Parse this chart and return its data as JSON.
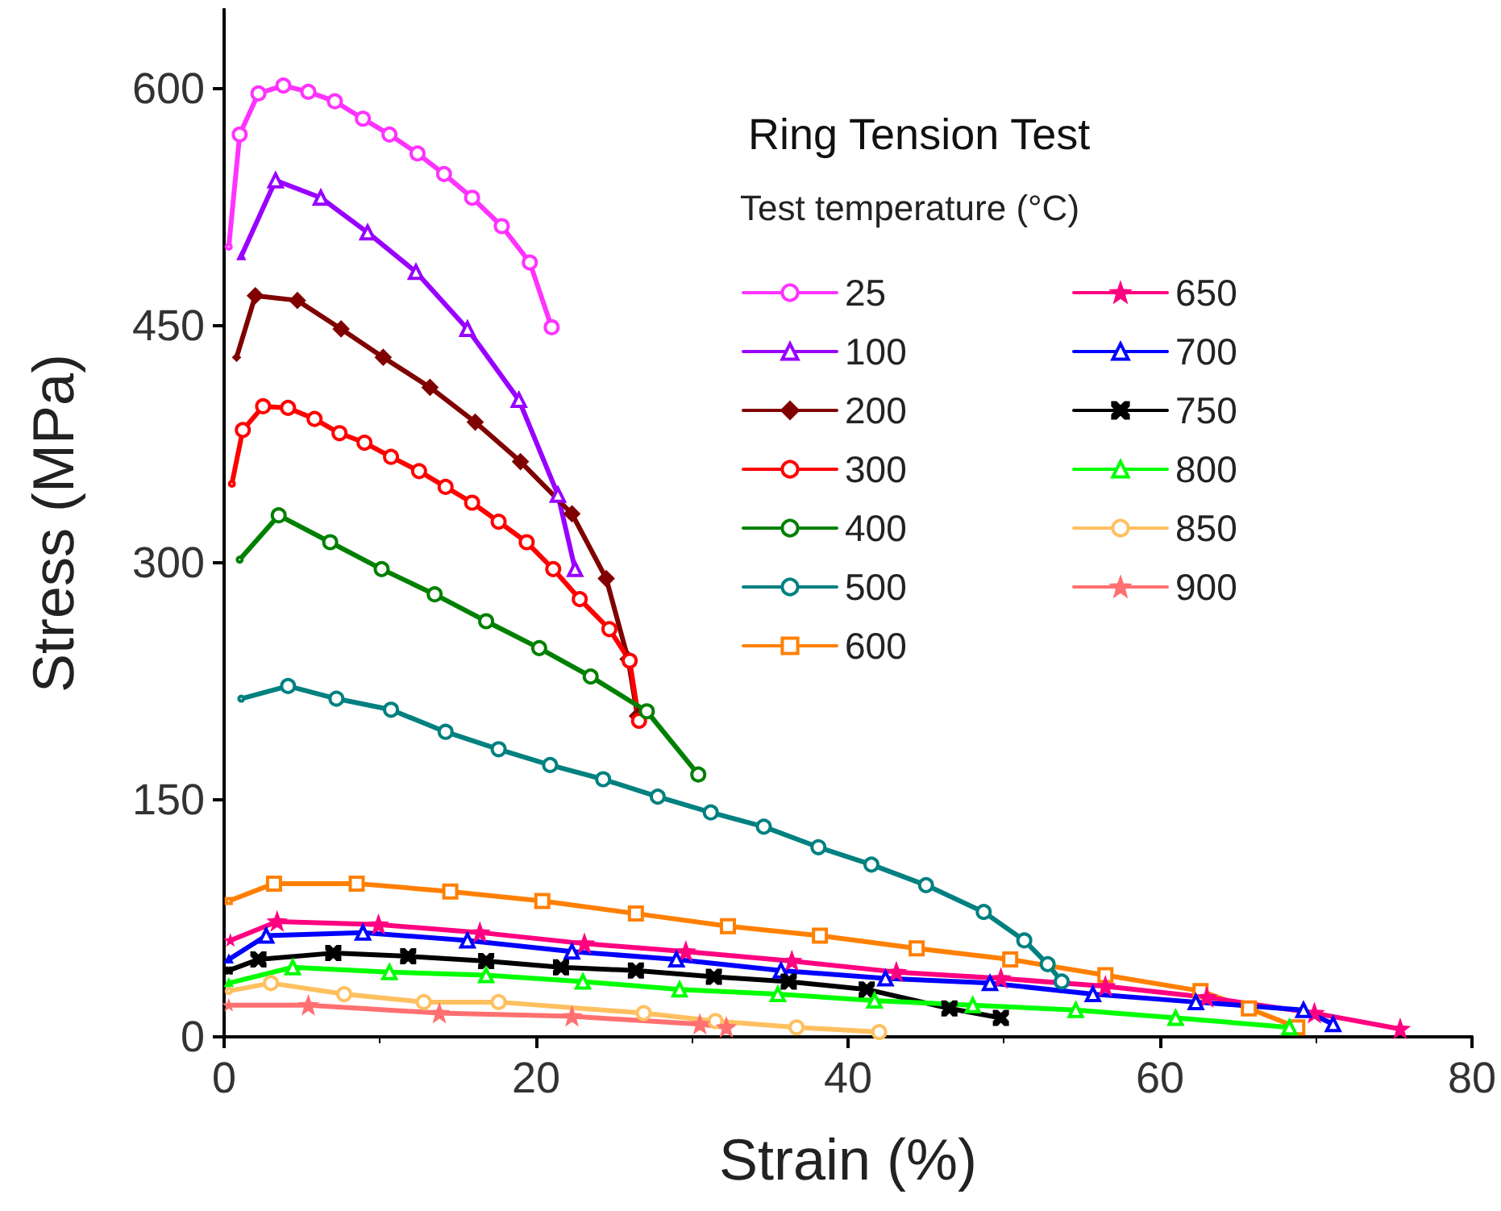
{
  "chart_data": {
    "type": "line",
    "title": "Ring Tension Test",
    "legend_title": "Test temperature (°C)",
    "xlabel": "Strain (%)",
    "ylabel": "Stress (MPa)",
    "xlim": [
      0,
      80
    ],
    "xticks": [
      0,
      20,
      40,
      60,
      80
    ],
    "ylim": [
      0,
      650
    ],
    "yticks": [
      0,
      150,
      300,
      450,
      600
    ],
    "grid": false,
    "legend": "top right",
    "line_style": "solid",
    "series": [
      {
        "name": "25",
        "color": "#ff33ff",
        "marker": "circle",
        "x": [
          0.3,
          1.0,
          2.2,
          3.8,
          5.4,
          7.1,
          8.9,
          10.6,
          12.4,
          14.1,
          15.9,
          17.8,
          19.6,
          21.0
        ],
        "values": [
          500,
          571,
          597,
          602,
          598,
          592,
          581,
          571,
          559,
          546,
          531,
          513,
          490,
          449
        ]
      },
      {
        "name": "100",
        "color": "#9900ff",
        "marker": "triangle",
        "x": [
          1.1,
          3.3,
          6.2,
          9.2,
          12.3,
          15.6,
          18.9,
          21.4,
          22.5
        ],
        "values": [
          494,
          542,
          531,
          509,
          484,
          448,
          403,
          343,
          296
        ]
      },
      {
        "name": "200",
        "color": "#800000",
        "marker": "diamond",
        "x": [
          0.8,
          2.0,
          4.7,
          7.5,
          10.2,
          13.2,
          16.1,
          19.0,
          22.3,
          24.5,
          25.9,
          26.5
        ],
        "values": [
          430,
          469,
          466,
          448,
          430,
          411,
          389,
          364,
          331,
          290,
          239,
          203
        ]
      },
      {
        "name": "300",
        "color": "#ff0000",
        "marker": "circle",
        "x": [
          0.5,
          1.2,
          2.5,
          4.1,
          5.8,
          7.4,
          9.0,
          10.7,
          12.5,
          14.2,
          15.9,
          17.6,
          19.4,
          21.1,
          22.8,
          24.7,
          26.0,
          26.6
        ],
        "values": [
          350,
          384,
          399,
          398,
          391,
          382,
          376,
          367,
          358,
          348,
          338,
          326,
          313,
          296,
          277,
          258,
          238,
          200
        ]
      },
      {
        "name": "400",
        "color": "#008000",
        "marker": "circle",
        "x": [
          1.0,
          3.5,
          6.8,
          10.1,
          13.5,
          16.8,
          20.2,
          23.5,
          27.1,
          30.4
        ],
        "values": [
          302,
          330,
          313,
          296,
          280,
          263,
          246,
          228,
          206,
          166
        ]
      },
      {
        "name": "500",
        "color": "#008080",
        "marker": "circle",
        "x": [
          1.1,
          4.1,
          7.2,
          10.7,
          14.2,
          17.6,
          20.9,
          24.3,
          27.8,
          31.2,
          34.6,
          38.1,
          41.5,
          45.0,
          48.7,
          51.3,
          52.8,
          53.7
        ],
        "values": [
          214,
          222,
          214,
          207,
          193,
          182,
          172,
          163,
          152,
          142,
          133,
          120,
          109,
          96,
          79,
          61,
          46,
          35
        ]
      },
      {
        "name": "600",
        "color": "#ff8000",
        "marker": "square",
        "x": [
          0.3,
          3.2,
          8.5,
          14.5,
          20.4,
          26.4,
          32.3,
          38.2,
          44.4,
          50.4,
          56.5,
          62.6,
          65.7,
          68.8
        ],
        "values": [
          86,
          97,
          97,
          92,
          86,
          78,
          70,
          64,
          56,
          49,
          39,
          29,
          18,
          6
        ]
      },
      {
        "name": "650",
        "color": "#ff0080",
        "marker": "star",
        "x": [
          0.4,
          3.4,
          9.9,
          16.4,
          23.1,
          29.6,
          36.4,
          43.1,
          49.8,
          56.5,
          63.0,
          69.9,
          75.4
        ],
        "values": [
          61,
          73,
          71,
          66,
          59,
          54,
          48,
          41,
          37,
          32,
          25,
          15,
          5
        ]
      },
      {
        "name": "700",
        "color": "#0000ff",
        "marker": "triangle",
        "x": [
          0.3,
          2.7,
          8.9,
          15.6,
          22.3,
          29.0,
          35.7,
          42.4,
          49.1,
          55.7,
          62.3,
          69.2,
          71.1
        ],
        "values": [
          49,
          64,
          66,
          61,
          54,
          49,
          42,
          37,
          34,
          27,
          22,
          17,
          8
        ]
      },
      {
        "name": "750",
        "color": "#000000",
        "marker": "cross",
        "x": [
          0.3,
          2.2,
          7.0,
          11.8,
          16.8,
          21.6,
          26.4,
          31.4,
          36.2,
          41.2,
          46.5,
          49.8
        ],
        "values": [
          42,
          49,
          53,
          51,
          48,
          44,
          42,
          38,
          35,
          30,
          18,
          12
        ]
      },
      {
        "name": "800",
        "color": "#00ff00",
        "marker": "triangle",
        "x": [
          0.3,
          4.4,
          10.6,
          16.8,
          23.0,
          29.2,
          35.5,
          41.7,
          48.0,
          54.6,
          61.0,
          68.3
        ],
        "values": [
          34,
          44,
          41,
          39,
          35,
          30,
          27,
          23,
          20,
          17,
          12,
          6
        ]
      },
      {
        "name": "850",
        "color": "#ffc060",
        "marker": "circle",
        "x": [
          0.3,
          3.0,
          7.7,
          12.8,
          17.6,
          26.9,
          31.5,
          36.7,
          42.0
        ],
        "values": [
          29,
          34,
          27,
          22,
          22,
          15,
          10,
          6,
          3
        ]
      },
      {
        "name": "900",
        "color": "#ff7070",
        "marker": "star",
        "x": [
          0.3,
          5.4,
          13.8,
          22.3,
          30.5,
          32.2
        ],
        "values": [
          20,
          20,
          15,
          13,
          8,
          6
        ]
      }
    ]
  }
}
